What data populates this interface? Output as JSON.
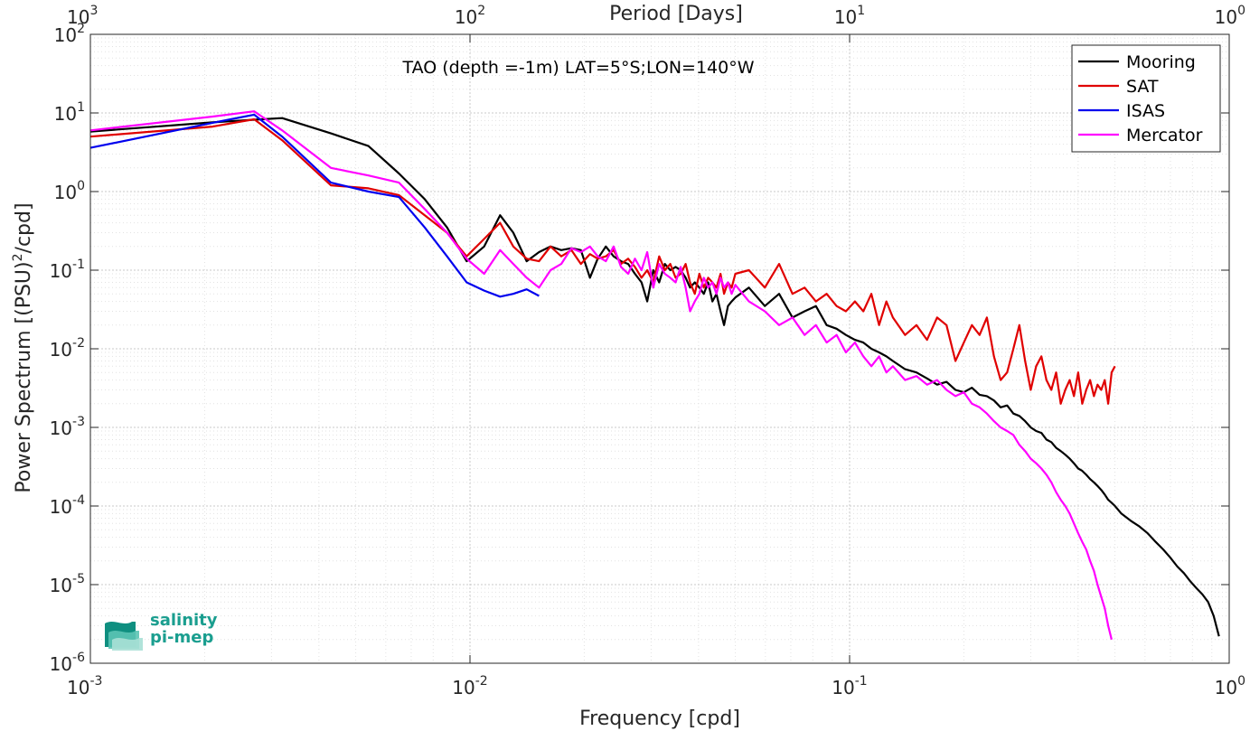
{
  "chart_data": {
    "type": "line",
    "annotation": "TAO (depth =-1m) LAT=5°S;LON=140°W",
    "xlabel": "Frequency [cpd]",
    "ylabel_main": "Power Spectrum [(PSU)",
    "ylabel_sup": "2",
    "ylabel_tail": "/cpd]",
    "x2label": "Period [Days]",
    "xscale": "log",
    "yscale": "log",
    "xlim": [
      0.001,
      1
    ],
    "ylim": [
      1e-06,
      100
    ],
    "x_ticks": [
      0.001,
      0.01,
      0.1,
      1
    ],
    "x_tick_labels": [
      {
        "base": "10",
        "exp": "-3"
      },
      {
        "base": "10",
        "exp": "-2"
      },
      {
        "base": "10",
        "exp": "-1"
      },
      {
        "base": "10",
        "exp": "0"
      }
    ],
    "x2_tick_labels": [
      {
        "base": "10",
        "exp": "3"
      },
      {
        "base": "10",
        "exp": "2"
      },
      {
        "base": "10",
        "exp": "1"
      },
      {
        "base": "10",
        "exp": "0"
      }
    ],
    "y_ticks": [
      1e-06,
      1e-05,
      0.0001,
      0.001,
      0.01,
      0.1,
      1,
      10,
      100
    ],
    "y_tick_labels": [
      {
        "base": "10",
        "exp": "-6"
      },
      {
        "base": "10",
        "exp": "-5"
      },
      {
        "base": "10",
        "exp": "-4"
      },
      {
        "base": "10",
        "exp": "-3"
      },
      {
        "base": "10",
        "exp": "-2"
      },
      {
        "base": "10",
        "exp": "-1"
      },
      {
        "base": "10",
        "exp": "0"
      },
      {
        "base": "10",
        "exp": "1"
      },
      {
        "base": "10",
        "exp": "2"
      }
    ],
    "grid": true,
    "legend_position": "top-right",
    "series": [
      {
        "name": "Mooring",
        "color": "#000000",
        "x": [
          0.001,
          0.0021,
          0.0027,
          0.0032,
          0.0043,
          0.0054,
          0.0065,
          0.0076,
          0.0087,
          0.0098,
          0.0109,
          0.012,
          0.013,
          0.0141,
          0.0152,
          0.0163,
          0.0174,
          0.0185,
          0.0196,
          0.0207,
          0.0217,
          0.0228,
          0.0239,
          0.025,
          0.0261,
          0.0272,
          0.0283,
          0.0293,
          0.0304,
          0.0315,
          0.0326,
          0.0337,
          0.0348,
          0.0359,
          0.037,
          0.038,
          0.0391,
          0.0402,
          0.0413,
          0.0424,
          0.0435,
          0.0446,
          0.0457,
          0.0467,
          0.0478,
          0.0489,
          0.05,
          0.0543,
          0.0598,
          0.0652,
          0.0707,
          0.0761,
          0.0815,
          0.087,
          0.0924,
          0.0978,
          0.1033,
          0.1087,
          0.1141,
          0.1196,
          0.125,
          0.13,
          0.14,
          0.15,
          0.16,
          0.17,
          0.18,
          0.19,
          0.2,
          0.21,
          0.22,
          0.23,
          0.24,
          0.25,
          0.26,
          0.27,
          0.28,
          0.29,
          0.3,
          0.31,
          0.32,
          0.33,
          0.34,
          0.35,
          0.36,
          0.37,
          0.38,
          0.39,
          0.4,
          0.41,
          0.42,
          0.43,
          0.44,
          0.45,
          0.46,
          0.47,
          0.48,
          0.49,
          0.5,
          0.52,
          0.55,
          0.58,
          0.61,
          0.64,
          0.67,
          0.7,
          0.73,
          0.76,
          0.79,
          0.82,
          0.85,
          0.88,
          0.91,
          0.94
        ],
        "y": [
          5.8,
          7.6,
          8.2,
          8.6,
          5.5,
          3.8,
          1.7,
          0.8,
          0.35,
          0.13,
          0.2,
          0.5,
          0.3,
          0.13,
          0.17,
          0.2,
          0.18,
          0.19,
          0.18,
          0.08,
          0.14,
          0.2,
          0.15,
          0.13,
          0.12,
          0.09,
          0.07,
          0.04,
          0.1,
          0.07,
          0.12,
          0.1,
          0.11,
          0.1,
          0.08,
          0.06,
          0.07,
          0.06,
          0.05,
          0.07,
          0.04,
          0.05,
          0.03,
          0.02,
          0.035,
          0.04,
          0.045,
          0.06,
          0.035,
          0.05,
          0.025,
          0.03,
          0.035,
          0.02,
          0.018,
          0.015,
          0.013,
          0.012,
          0.01,
          0.009,
          0.008,
          0.007,
          0.0055,
          0.005,
          0.0042,
          0.0035,
          0.0038,
          0.003,
          0.0028,
          0.0032,
          0.0026,
          0.0025,
          0.0022,
          0.0018,
          0.0019,
          0.0015,
          0.0014,
          0.0012,
          0.001,
          0.0009,
          0.00085,
          0.0007,
          0.00065,
          0.00055,
          0.0005,
          0.00045,
          0.0004,
          0.00035,
          0.0003,
          0.00028,
          0.00025,
          0.00022,
          0.0002,
          0.00018,
          0.00016,
          0.00014,
          0.00012,
          0.00011,
          0.0001,
          8e-05,
          6.5e-05,
          5.5e-05,
          4.5e-05,
          3.5e-05,
          2.8e-05,
          2.2e-05,
          1.7e-05,
          1.4e-05,
          1.1e-05,
          9e-06,
          7.5e-06,
          6e-06,
          4e-06,
          2.2e-06
        ]
      },
      {
        "name": "SAT",
        "color": "#e00000",
        "x": [
          0.001,
          0.0021,
          0.0027,
          0.0032,
          0.0043,
          0.0054,
          0.0065,
          0.0076,
          0.0087,
          0.0098,
          0.0109,
          0.012,
          0.013,
          0.0141,
          0.0152,
          0.0163,
          0.0174,
          0.0185,
          0.0196,
          0.0207,
          0.0217,
          0.0228,
          0.0239,
          0.025,
          0.0261,
          0.0272,
          0.0283,
          0.0293,
          0.0304,
          0.0315,
          0.0326,
          0.0337,
          0.0348,
          0.0359,
          0.037,
          0.038,
          0.0391,
          0.0402,
          0.0413,
          0.0424,
          0.0435,
          0.0446,
          0.0457,
          0.0467,
          0.0478,
          0.0489,
          0.05,
          0.0543,
          0.0598,
          0.0652,
          0.0707,
          0.0761,
          0.0815,
          0.087,
          0.0924,
          0.0978,
          0.1033,
          0.1087,
          0.1141,
          0.1196,
          0.125,
          0.13,
          0.14,
          0.15,
          0.16,
          0.17,
          0.18,
          0.19,
          0.2,
          0.21,
          0.22,
          0.23,
          0.24,
          0.25,
          0.26,
          0.27,
          0.28,
          0.29,
          0.3,
          0.31,
          0.32,
          0.33,
          0.34,
          0.35,
          0.36,
          0.37,
          0.38,
          0.39,
          0.4,
          0.41,
          0.42,
          0.43,
          0.44,
          0.45,
          0.46,
          0.47,
          0.48,
          0.49,
          0.5
        ],
        "y": [
          5.0,
          6.7,
          8.3,
          4.5,
          1.2,
          1.1,
          0.9,
          0.5,
          0.3,
          0.15,
          0.25,
          0.4,
          0.2,
          0.14,
          0.13,
          0.2,
          0.15,
          0.18,
          0.12,
          0.16,
          0.14,
          0.15,
          0.18,
          0.12,
          0.14,
          0.11,
          0.08,
          0.1,
          0.07,
          0.15,
          0.1,
          0.12,
          0.08,
          0.09,
          0.12,
          0.07,
          0.05,
          0.09,
          0.06,
          0.08,
          0.07,
          0.06,
          0.09,
          0.05,
          0.07,
          0.06,
          0.09,
          0.1,
          0.06,
          0.12,
          0.05,
          0.06,
          0.04,
          0.05,
          0.035,
          0.03,
          0.04,
          0.03,
          0.05,
          0.02,
          0.04,
          0.025,
          0.015,
          0.02,
          0.013,
          0.025,
          0.02,
          0.007,
          0.012,
          0.02,
          0.015,
          0.025,
          0.008,
          0.004,
          0.005,
          0.01,
          0.02,
          0.007,
          0.003,
          0.006,
          0.008,
          0.004,
          0.003,
          0.005,
          0.002,
          0.003,
          0.004,
          0.0025,
          0.005,
          0.002,
          0.003,
          0.004,
          0.0025,
          0.0035,
          0.003,
          0.004,
          0.002,
          0.005,
          0.006
        ]
      },
      {
        "name": "ISAS",
        "color": "#0000ee",
        "x": [
          0.001,
          0.0021,
          0.0027,
          0.0032,
          0.0043,
          0.0054,
          0.0065,
          0.0076,
          0.0087,
          0.0098,
          0.0109,
          0.012,
          0.013,
          0.0141,
          0.0152
        ],
        "y": [
          3.6,
          7.5,
          9.5,
          5.0,
          1.3,
          1.0,
          0.85,
          0.35,
          0.15,
          0.07,
          0.055,
          0.046,
          0.05,
          0.057,
          0.047
        ]
      },
      {
        "name": "Mercator",
        "color": "#ff00ff",
        "x": [
          0.001,
          0.0021,
          0.0027,
          0.0032,
          0.0043,
          0.0054,
          0.0065,
          0.0076,
          0.0087,
          0.0098,
          0.0109,
          0.012,
          0.013,
          0.0141,
          0.0152,
          0.0163,
          0.0174,
          0.0185,
          0.0196,
          0.0207,
          0.0217,
          0.0228,
          0.0239,
          0.025,
          0.0261,
          0.0272,
          0.0283,
          0.0293,
          0.0304,
          0.0315,
          0.0326,
          0.0337,
          0.0348,
          0.0359,
          0.037,
          0.038,
          0.0391,
          0.0402,
          0.0413,
          0.0424,
          0.0435,
          0.0446,
          0.0457,
          0.0467,
          0.0478,
          0.0489,
          0.05,
          0.0543,
          0.0598,
          0.0652,
          0.0707,
          0.0761,
          0.0815,
          0.087,
          0.0924,
          0.0978,
          0.1033,
          0.1087,
          0.1141,
          0.1196,
          0.125,
          0.13,
          0.14,
          0.15,
          0.16,
          0.17,
          0.18,
          0.19,
          0.2,
          0.21,
          0.22,
          0.23,
          0.24,
          0.25,
          0.26,
          0.27,
          0.28,
          0.29,
          0.3,
          0.31,
          0.32,
          0.33,
          0.34,
          0.35,
          0.36,
          0.37,
          0.38,
          0.39,
          0.4,
          0.41,
          0.42,
          0.43,
          0.44,
          0.45,
          0.46,
          0.47,
          0.48,
          0.49
        ],
        "y": [
          6.0,
          9.0,
          10.5,
          6.0,
          2.0,
          1.6,
          1.3,
          0.6,
          0.3,
          0.14,
          0.09,
          0.18,
          0.12,
          0.08,
          0.06,
          0.1,
          0.12,
          0.19,
          0.17,
          0.2,
          0.15,
          0.13,
          0.2,
          0.11,
          0.09,
          0.14,
          0.1,
          0.17,
          0.06,
          0.12,
          0.09,
          0.08,
          0.07,
          0.11,
          0.06,
          0.03,
          0.04,
          0.05,
          0.08,
          0.06,
          0.07,
          0.05,
          0.08,
          0.06,
          0.07,
          0.05,
          0.065,
          0.04,
          0.03,
          0.02,
          0.025,
          0.015,
          0.02,
          0.012,
          0.015,
          0.009,
          0.012,
          0.008,
          0.006,
          0.008,
          0.005,
          0.006,
          0.004,
          0.0045,
          0.0035,
          0.004,
          0.003,
          0.0025,
          0.0028,
          0.002,
          0.0018,
          0.0015,
          0.0012,
          0.001,
          0.0009,
          0.0008,
          0.0006,
          0.0005,
          0.0004,
          0.00035,
          0.0003,
          0.00025,
          0.0002,
          0.00015,
          0.00012,
          0.0001,
          8e-05,
          6e-05,
          4.5e-05,
          3.5e-05,
          2.8e-05,
          2e-05,
          1.5e-05,
          1e-05,
          7e-06,
          5e-06,
          3e-06,
          2e-06
        ]
      }
    ]
  },
  "logo": {
    "line1": "salinity",
    "line2": "pi-mep"
  }
}
